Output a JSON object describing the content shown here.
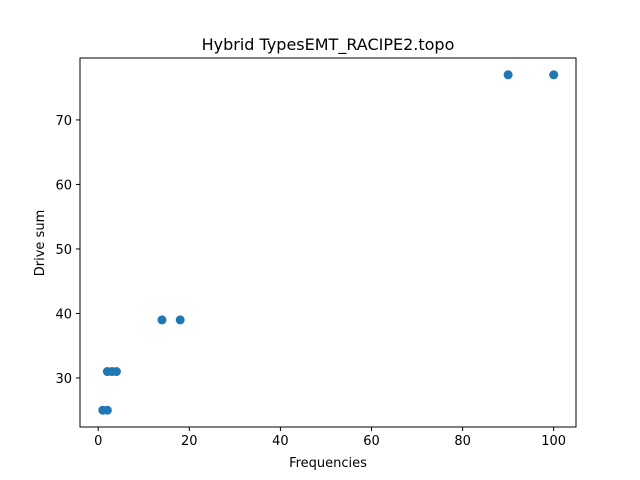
{
  "chart_data": {
    "type": "scatter",
    "title": "Hybrid TypesEMT_RACIPE2.topo",
    "xlabel": "Frequencies",
    "ylabel": "Drive sum",
    "xlim": [
      -4.0,
      104.9
    ],
    "ylim": [
      22.4,
      79.6
    ],
    "xticks": [
      0,
      20,
      40,
      60,
      80,
      100
    ],
    "yticks": [
      30,
      40,
      50,
      60,
      70
    ],
    "grid": false,
    "marker_color": "#1f77b4",
    "series": [
      {
        "x": [
          1,
          2,
          2,
          3,
          4,
          14,
          18,
          90,
          100
        ],
        "y": [
          25,
          25,
          31,
          31,
          31,
          39,
          39,
          77,
          77
        ]
      }
    ]
  }
}
